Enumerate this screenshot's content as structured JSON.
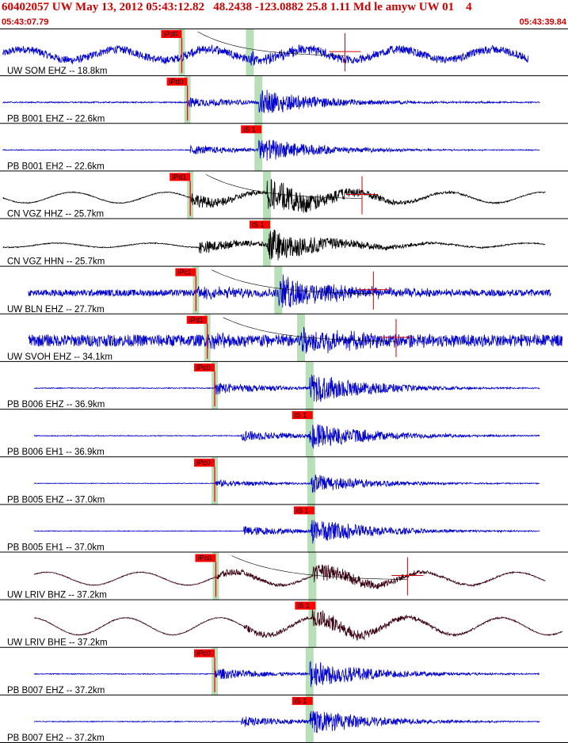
{
  "header": {
    "title": "60402057 UW May 13, 2012 05:43:12.82   48.2438 -123.0882 25.8 1.11 Md le amyw UW 01    4",
    "start_time": "05:43:07.79",
    "end_time": "05:43:39.84"
  },
  "colors": {
    "trace_blue": "#0000cc",
    "trace_black": "#000000",
    "pick_box": "#ff0000",
    "window_band": "#b8e0b8",
    "coda": "#cc0000",
    "separator": "#000000"
  },
  "chart_data": {
    "type": "seismogram",
    "time_range": [
      "05:43:07.79",
      "05:43:39.84"
    ],
    "channels": [
      {
        "label": "UW SOM EHZ -- 18.8km",
        "color": "blue",
        "amp": 0.22,
        "noise": 0.18,
        "bg_wave": 0.25,
        "pick": {
          "label": "iPd0",
          "t": 0.32
        },
        "s": {
          "t": 0.44
        },
        "coda": true,
        "end": 0.93
      },
      {
        "label": "PB B001 EHZ -- 22.6km",
        "color": "blue",
        "amp": 0.55,
        "noise": 0.03,
        "bg_wave": 0,
        "pick": {
          "label": "iPd0",
          "t": 0.33
        },
        "s": {
          "t": 0.455
        },
        "coda": false,
        "end": 0.95
      },
      {
        "label": "PB B001 EH2 -- 22.6km",
        "color": "blue",
        "amp": 0.5,
        "noise": 0.02,
        "bg_wave": 0,
        "pick": {
          "label": "iS 1",
          "t": 0.455,
          "box_only": true
        },
        "s": {
          "t": 0.455
        },
        "coda": false,
        "end": 0.95
      },
      {
        "label": "CN VGZ HHZ -- 25.7km",
        "color": "black",
        "amp": 0.75,
        "noise": 0.02,
        "bg_wave": 0.25,
        "pick": {
          "label": "iPd1",
          "t": 0.335
        },
        "s": {
          "t": 0.47
        },
        "coda": true,
        "end": 0.96
      },
      {
        "label": "CN VGZ HHN -- 25.7km",
        "color": "black",
        "amp": 0.7,
        "noise": 0.02,
        "bg_wave": 0.1,
        "pick": {
          "label": "iS 1",
          "t": 0.47,
          "box_only": true
        },
        "s": {
          "t": 0.47
        },
        "coda": false,
        "end": 0.96
      },
      {
        "label": "UW BLN EHZ -- 27.7km",
        "color": "blue",
        "amp": 0.7,
        "noise": 0.15,
        "bg_wave": 0,
        "pick": {
          "label": "iPc1",
          "t": 0.345
        },
        "s": {
          "t": 0.49
        },
        "coda": true,
        "end": 0.97,
        "start": 0.05
      },
      {
        "label": "UW SVOH EHZ -- 34.1km",
        "color": "blue",
        "amp": 0.45,
        "noise": 0.28,
        "bg_wave": 0,
        "pick": {
          "label": "iPd1",
          "t": 0.365
        },
        "s": {
          "t": 0.53
        },
        "coda": true,
        "end": 0.99,
        "start": 0.05
      },
      {
        "label": "PB B006 EHZ -- 36.9km",
        "color": "blue",
        "amp": 0.65,
        "noise": 0.02,
        "bg_wave": 0,
        "pick": {
          "label": "iPc0",
          "t": 0.378
        },
        "s": {
          "t": 0.545
        },
        "coda": false,
        "end": 0.95,
        "start": 0.06
      },
      {
        "label": "PB B006 EH1 -- 36.9km",
        "color": "blue",
        "amp": 0.6,
        "noise": 0.02,
        "bg_wave": 0,
        "pick": {
          "label": "iS 1",
          "t": 0.545,
          "box_only": true
        },
        "s": {
          "t": 0.545
        },
        "coda": false,
        "end": 0.95,
        "start": 0.06
      },
      {
        "label": "PB B005 EHZ -- 37.0km",
        "color": "blue",
        "amp": 0.4,
        "noise": 0.015,
        "bg_wave": 0,
        "pick": {
          "label": "iPc0",
          "t": 0.378
        },
        "s": {
          "t": 0.548
        },
        "coda": false,
        "end": 0.95,
        "start": 0.06
      },
      {
        "label": "PB B005 EH1 -- 37.0km",
        "color": "blue",
        "amp": 0.55,
        "noise": 0.015,
        "bg_wave": 0,
        "pick": {
          "label": "iS 1",
          "t": 0.548,
          "box_only": true
        },
        "s": {
          "t": 0.548
        },
        "coda": false,
        "end": 0.95,
        "start": 0.06
      },
      {
        "label": "UW LRIV BHZ -- 37.2km",
        "color": "darkred",
        "amp": 0.45,
        "noise": 0.02,
        "bg_wave": 0.3,
        "pick": {
          "label": "iPc0",
          "t": 0.38
        },
        "s": {
          "t": 0.55
        },
        "coda": true,
        "end": 0.96,
        "start": 0.06
      },
      {
        "label": "UW LRIV BHE -- 37.2km",
        "color": "darkred",
        "amp": 0.45,
        "noise": 0.02,
        "bg_wave": 0.4,
        "pick": {
          "label": "iS 1",
          "t": 0.55,
          "box_only": true
        },
        "s": {
          "t": 0.55
        },
        "coda": false,
        "end": 0.99,
        "start": 0.06
      },
      {
        "label": "PB B007 EHZ -- 37.2km",
        "color": "blue",
        "amp": 0.6,
        "noise": 0.02,
        "bg_wave": 0,
        "pick": {
          "label": "iPc0",
          "t": 0.378
        },
        "s": {
          "t": 0.545
        },
        "coda": false,
        "end": 0.95,
        "start": 0.06
      },
      {
        "label": "PB B007 EH2 -- 37.2km",
        "color": "blue",
        "amp": 0.55,
        "noise": 0.02,
        "bg_wave": 0,
        "pick": {
          "label": "iS 1",
          "t": 0.545,
          "box_only": true
        },
        "s": {
          "t": 0.545
        },
        "coda": false,
        "end": 0.95,
        "start": 0.06
      }
    ]
  }
}
